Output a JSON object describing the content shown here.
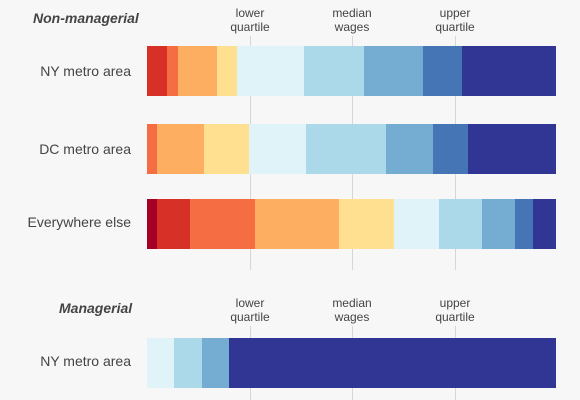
{
  "palette": [
    "#a50026",
    "#d73027",
    "#f46d43",
    "#fdae61",
    "#fee090",
    "#e0f3f8",
    "#abd9e9",
    "#74add1",
    "#4575b4",
    "#313695"
  ],
  "chart_data": [
    {
      "type": "bar",
      "stacked": true,
      "orientation": "horizontal",
      "title": "Non-managerial",
      "quartile_labels": {
        "lower": [
          "lower",
          "quartile"
        ],
        "median": [
          "median",
          "wages"
        ],
        "upper": [
          "upper",
          "quartile"
        ]
      },
      "categories": [
        "NY metro area",
        "DC metro area",
        "Everywhere else"
      ],
      "series_values": [
        [
          0,
          5,
          2.5,
          9.5,
          5,
          16.5,
          14.5,
          14.5,
          9.5,
          23
        ],
        [
          0,
          0,
          2.5,
          11.5,
          11,
          14,
          19.5,
          11.5,
          8.5,
          21.5
        ],
        [
          2.5,
          8,
          16,
          20.5,
          13.5,
          11,
          10.5,
          8,
          4.5,
          5.5
        ]
      ]
    },
    {
      "type": "bar",
      "stacked": true,
      "orientation": "horizontal",
      "title": "Managerial",
      "quartile_labels": {
        "lower": [
          "lower",
          "quartile"
        ],
        "median": [
          "median",
          "wages"
        ],
        "upper": [
          "upper",
          "quartile"
        ]
      },
      "categories": [
        "NY metro area"
      ],
      "series_values": [
        [
          0,
          0,
          0,
          0,
          0,
          6.5,
          7,
          6.5,
          0,
          80
        ]
      ]
    }
  ]
}
